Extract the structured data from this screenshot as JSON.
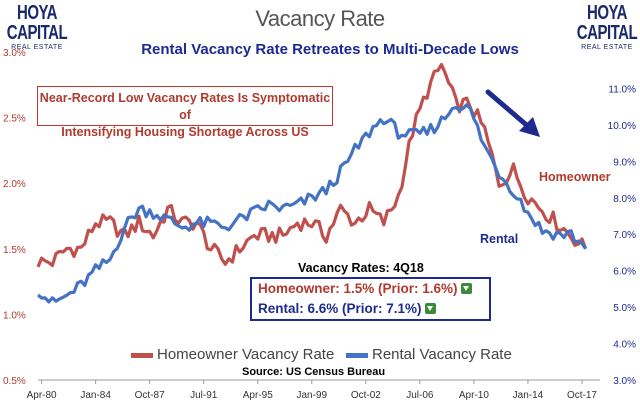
{
  "logo": {
    "wordmark": "HOYA CAPITAL",
    "subtext": "REAL ESTATE"
  },
  "title": "Vacancy Rate",
  "subtitle": "Rental Vacancy Rate Retreates to Multi-Decade Lows",
  "note": {
    "line1": "Near-Record Low Vacancy Rates Is Symptomatic of",
    "line2": "Intensifying Housing Shortage Across US"
  },
  "rates": {
    "header": "Vacancy Rates: 4Q18",
    "homeowner": "Homeowner: 1.5% (Prior: 1.6%)",
    "rental": "Rental: 6.6% (Prior: 7.1%)"
  },
  "labels": {
    "homeowner": "Homeowner",
    "rental": "Rental"
  },
  "source": "Source: US Census Bureau",
  "colors": {
    "homeowner": "#c0504d",
    "rental": "#4472c4",
    "arrow": "#1d2a8f"
  },
  "chart_data": {
    "type": "line",
    "title": "Vacancy Rate",
    "subtitle": "Rental Vacancy Rate Retreates to Multi-Decade Lows",
    "x_tick_labels": [
      "Apr-80",
      "Jan-84",
      "Oct-87",
      "Jul-91",
      "Apr-95",
      "Jan-99",
      "Oct-02",
      "Jul-06",
      "Apr-10",
      "Jan-14",
      "Oct-17"
    ],
    "x_tick_years": [
      1980.25,
      1984.0,
      1987.75,
      1991.5,
      1995.25,
      1999.0,
      2002.75,
      2006.5,
      2010.25,
      2014.0,
      2017.75
    ],
    "xlim": [
      1980.0,
      2019.0
    ],
    "y_left": {
      "ylim": [
        0.5,
        3.0
      ],
      "ticks": [
        0.5,
        1.0,
        1.5,
        2.0,
        2.5,
        3.0
      ],
      "tick_labels": [
        "0.5%",
        "1.0%",
        "1.5%",
        "2.0%",
        "2.5%",
        "3.0%"
      ]
    },
    "y_right": {
      "ylim": [
        3.0,
        12.0
      ],
      "ticks": [
        3,
        4,
        5,
        6,
        7,
        8,
        9,
        10,
        11
      ],
      "tick_labels": [
        "3.0%",
        "4.0%",
        "5.0%",
        "6.0%",
        "7.0%",
        "8.0%",
        "9.0%",
        "10.0%",
        "11.0%"
      ]
    },
    "legend": "bottom",
    "grid": false,
    "series": [
      {
        "name": "Homeowner Vacancy Rate",
        "axis": "left",
        "points": [
          [
            1980.0,
            1.4
          ],
          [
            1981.0,
            1.4
          ],
          [
            1982.0,
            1.5
          ],
          [
            1983.0,
            1.5
          ],
          [
            1984.0,
            1.7
          ],
          [
            1985.0,
            1.7
          ],
          [
            1986.0,
            1.6
          ],
          [
            1987.0,
            1.7
          ],
          [
            1988.0,
            1.6
          ],
          [
            1989.0,
            1.8
          ],
          [
            1990.0,
            1.7
          ],
          [
            1991.0,
            1.7
          ],
          [
            1992.0,
            1.5
          ],
          [
            1993.0,
            1.4
          ],
          [
            1994.0,
            1.5
          ],
          [
            1995.0,
            1.6
          ],
          [
            1996.0,
            1.6
          ],
          [
            1997.0,
            1.6
          ],
          [
            1998.0,
            1.7
          ],
          [
            1999.0,
            1.7
          ],
          [
            2000.0,
            1.6
          ],
          [
            2001.0,
            1.8
          ],
          [
            2002.0,
            1.7
          ],
          [
            2003.0,
            1.8
          ],
          [
            2004.0,
            1.7
          ],
          [
            2005.0,
            1.9
          ],
          [
            2006.0,
            2.4
          ],
          [
            2007.0,
            2.7
          ],
          [
            2008.0,
            2.9
          ],
          [
            2009.0,
            2.6
          ],
          [
            2010.0,
            2.6
          ],
          [
            2011.0,
            2.4
          ],
          [
            2012.0,
            2.0
          ],
          [
            2013.0,
            2.1
          ],
          [
            2014.0,
            1.9
          ],
          [
            2015.0,
            1.8
          ],
          [
            2016.0,
            1.7
          ],
          [
            2017.0,
            1.6
          ],
          [
            2018.0,
            1.5
          ]
        ]
      },
      {
        "name": "Rental Vacancy Rate",
        "axis": "right",
        "points": [
          [
            1980.0,
            5.5
          ],
          [
            1981.0,
            5.1
          ],
          [
            1982.0,
            5.3
          ],
          [
            1983.0,
            5.6
          ],
          [
            1984.0,
            6.0
          ],
          [
            1985.0,
            6.3
          ],
          [
            1986.0,
            7.2
          ],
          [
            1987.0,
            7.7
          ],
          [
            1988.0,
            7.6
          ],
          [
            1989.0,
            7.4
          ],
          [
            1990.0,
            7.2
          ],
          [
            1991.0,
            7.3
          ],
          [
            1992.0,
            7.3
          ],
          [
            1993.0,
            7.2
          ],
          [
            1994.0,
            7.4
          ],
          [
            1995.0,
            7.6
          ],
          [
            1996.0,
            7.8
          ],
          [
            1997.0,
            7.7
          ],
          [
            1998.0,
            7.8
          ],
          [
            1999.0,
            8.0
          ],
          [
            2000.0,
            8.2
          ],
          [
            2001.0,
            8.7
          ],
          [
            2002.0,
            9.3
          ],
          [
            2003.0,
            9.8
          ],
          [
            2004.0,
            10.2
          ],
          [
            2005.0,
            9.8
          ],
          [
            2006.0,
            9.7
          ],
          [
            2007.0,
            9.8
          ],
          [
            2008.0,
            10.1
          ],
          [
            2009.0,
            10.6
          ],
          [
            2010.0,
            10.4
          ],
          [
            2011.0,
            9.4
          ],
          [
            2012.0,
            8.7
          ],
          [
            2013.0,
            8.2
          ],
          [
            2014.0,
            7.6
          ],
          [
            2015.0,
            7.1
          ],
          [
            2016.0,
            7.0
          ],
          [
            2017.0,
            7.0
          ],
          [
            2018.0,
            6.6
          ]
        ]
      }
    ]
  }
}
